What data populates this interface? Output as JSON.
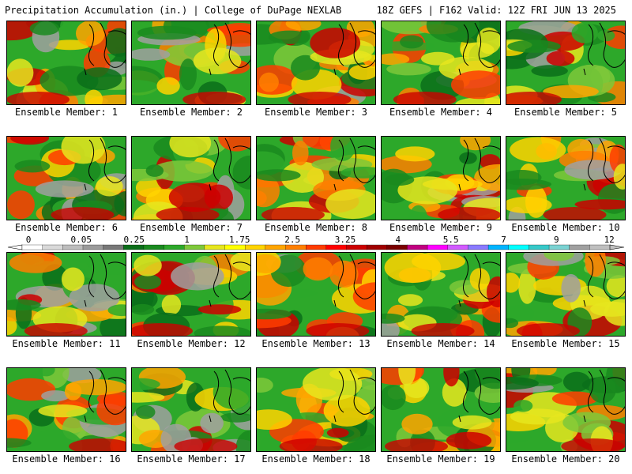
{
  "header": {
    "left_title": "Precipitation Accumulation (in.) | College of DuPage NEXLAB",
    "right_title": "18Z GEFS | F162 Valid: 12Z FRI JUN 13 2025"
  },
  "member_label_prefix": "Ensemble Member: ",
  "members": [
    {
      "number": "1",
      "label": "Ensemble Member: 1"
    },
    {
      "number": "2",
      "label": "Ensemble Member: 2"
    },
    {
      "number": "3",
      "label": "Ensemble Member: 3"
    },
    {
      "number": "4",
      "label": "Ensemble Member: 4"
    },
    {
      "number": "5",
      "label": "Ensemble Member: 5"
    },
    {
      "number": "6",
      "label": "Ensemble Member: 6"
    },
    {
      "number": "7",
      "label": "Ensemble Member: 7"
    },
    {
      "number": "8",
      "label": "Ensemble Member: 8"
    },
    {
      "number": "9",
      "label": "Ensemble Member: 9"
    },
    {
      "number": "10",
      "label": "Ensemble Member: 10"
    },
    {
      "number": "11",
      "label": "Ensemble Member: 11"
    },
    {
      "number": "12",
      "label": "Ensemble Member: 12"
    },
    {
      "number": "13",
      "label": "Ensemble Member: 13"
    },
    {
      "number": "14",
      "label": "Ensemble Member: 14"
    },
    {
      "number": "15",
      "label": "Ensemble Member: 15"
    },
    {
      "number": "16",
      "label": "Ensemble Member: 16"
    },
    {
      "number": "17",
      "label": "Ensemble Member: 17"
    },
    {
      "number": "18",
      "label": "Ensemble Member: 18"
    },
    {
      "number": "19",
      "label": "Ensemble Member: 19"
    },
    {
      "number": "20",
      "label": "Ensemble Member: 20"
    }
  ],
  "colorbar": {
    "tick_labels": [
      "0",
      "0.05",
      "0.25",
      "1",
      "1.75",
      "2.5",
      "3.25",
      "4",
      "5.5",
      "7",
      "9",
      "12"
    ],
    "colors": [
      "#ffffff",
      "#d9d9d9",
      "#bdbdbd",
      "#9b9b9b",
      "#787878",
      "#0b6e1a",
      "#1a8a1f",
      "#2da82a",
      "#7ec83a",
      "#e6e61e",
      "#ffff00",
      "#ffd400",
      "#ffa500",
      "#ff7f00",
      "#ff3c00",
      "#ff0000",
      "#cc0000",
      "#a00000",
      "#7a0000",
      "#c00080",
      "#ff00ff",
      "#d25aff",
      "#8a7aff",
      "#00b4ff",
      "#00ffff",
      "#36c8c8",
      "#7ad2d2",
      "#a0a0a0",
      "#bfbfbf"
    ]
  }
}
